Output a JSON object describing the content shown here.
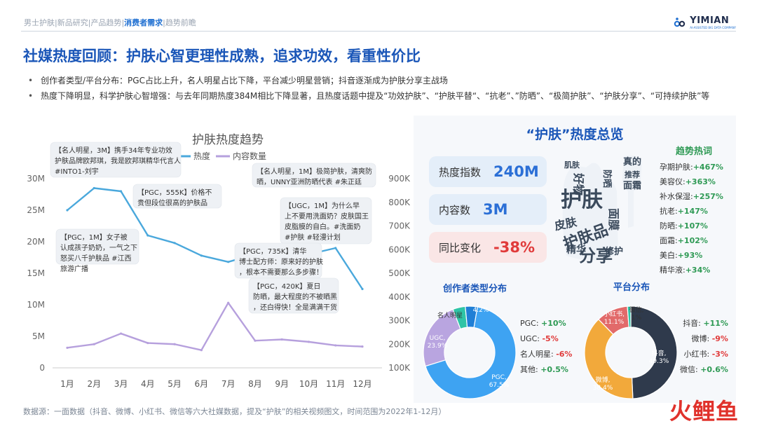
{
  "nav": {
    "items": [
      "男士护肤",
      "新品研究",
      "产品趋势",
      "消费者需求",
      "趋势前瞻"
    ],
    "active_index": 3
  },
  "brand": {
    "logo_text": "YIMIAN",
    "logo_sub": "AI-ASSISTED BIG DATA COMPANY",
    "bottom_mark": "火鲤鱼"
  },
  "title": "社媒热度回顾：护肤心智更理性成熟，追求功效，看重性价比",
  "bullets": [
    "创作者类型/平台分布：PGC占比上升，名人明星占比下降，平台减少明星营销；抖音逐渐成为护肤分享主战场",
    "热度下降明显，科学护肤心智增强：与去年同期热度384M相比下降显著，且热度话题中提及“功效护肤”、“护肤平替“、“抗老”、”防晒”、“极简护肤”、“护肤分享”、“可持续护肤”等"
  ],
  "source": "数据源：一面数据（抖音、微博、小红书、微信等六大社媒数据，提及“护肤”的相关视频图文，时间范围为2022年1-12月）",
  "chart_data": [
    {
      "type": "line",
      "title": "护肤热度趋势",
      "categories": [
        "1月",
        "2月",
        "3月",
        "4月",
        "5月",
        "6月",
        "7月",
        "8月",
        "9月",
        "10月",
        "11月",
        "12月"
      ],
      "series": [
        {
          "name": "热度",
          "axis": "left",
          "color": "#4aa8dc",
          "values": [
            25,
            28.5,
            28,
            21,
            19.8,
            17.8,
            16.8,
            18,
            18,
            18,
            19,
            12.5
          ]
        },
        {
          "name": "内容数量",
          "axis": "right",
          "color": "#b6a0dd",
          "values": [
            185,
            200,
            245,
            205,
            200,
            175,
            375,
            215,
            220,
            210,
            195,
            190
          ]
        }
      ],
      "y_left": {
        "ylim": [
          0,
          30
        ],
        "ticks": [
          "0",
          "5M",
          "10M",
          "15M",
          "20M",
          "25M",
          "30M"
        ]
      },
      "y_right": {
        "ylim": [
          100,
          900
        ],
        "ticks": [
          "100K",
          "200K",
          "300K",
          "400K",
          "500K",
          "600K",
          "700K",
          "800K",
          "900K"
        ]
      },
      "annotations": [
        {
          "text": "【名人明星，3M】携手34年专业功效护肤品牌欧邦琪，我是欧邦琪精华代言人#INTO1-刘宇"
        },
        {
          "text": "【PGC，555K】价格不贵但段位很高的护肤品"
        },
        {
          "text": "【PGC，1M】女子被认成孩子奶奶，一气之下怒买八千护肤品 #江西旅游广播"
        },
        {
          "text": "【名人明星，1M】极简护肤，清爽防晒，UNNY亚洲防晒代表 #朱正廷"
        },
        {
          "text": "【UGC，1M】为什么早上不要用洗面奶？皮肤国王皮脂膜的自白。#洗面奶 #护肤 #轻漫计划"
        },
        {
          "text": "【PGC，735K】清华博士配方师：原来好的护肤，根本不需要那么多步骤！"
        },
        {
          "text": "【PGC，420K】夏日防晒，最大程度的不被晒黑，还白得快！全是满满干货"
        }
      ]
    },
    {
      "type": "pie",
      "title": "创作者类型分布",
      "slices": [
        {
          "label": "PGC",
          "value": 67.5,
          "color": "#3ea3f2"
        },
        {
          "label": "UGC",
          "value": 23.9,
          "color": "#b9a5e0"
        },
        {
          "label": "名人明星",
          "value": 4.4,
          "color": "#2ec4a6"
        },
        {
          "label": "其他",
          "value": 4.2,
          "color": "#1f7fd6"
        }
      ],
      "slice_labels": [
        "PGC,\n67.5%",
        "UGC,\n23.9%",
        "名人明星",
        "4.2%"
      ],
      "legend": [
        {
          "label": "PGC:",
          "change": "+10%",
          "sign": "pos"
        },
        {
          "label": "UGC:",
          "change": "-5%",
          "sign": "neg"
        },
        {
          "label": "名人明星:",
          "change": "-6%",
          "sign": "neg"
        },
        {
          "label": "其他:",
          "change": "+0.5%",
          "sign": "pos"
        }
      ]
    },
    {
      "type": "pie",
      "title": "平台分布",
      "slices": [
        {
          "label": "抖音",
          "value": 49.3,
          "color": "#2f3a4c"
        },
        {
          "label": "微博",
          "value": 38.4,
          "color": "#f2a93b"
        },
        {
          "label": "小红书",
          "value": 11.1,
          "color": "#e26a6a"
        },
        {
          "label": "微信",
          "value": 1.2,
          "color": "#2ec4a6"
        }
      ],
      "slice_labels": [
        "抖音,\n49.3%",
        "微博,\n38.4%",
        "小红书,\n11.1%",
        "微信,\n1%"
      ],
      "legend": [
        {
          "label": "抖音:",
          "change": "+11%",
          "sign": "pos"
        },
        {
          "label": "微博:",
          "change": "-9%",
          "sign": "neg"
        },
        {
          "label": "小红书:",
          "change": "-3%",
          "sign": "neg"
        },
        {
          "label": "微信:",
          "change": "+0.6%",
          "sign": "pos"
        }
      ]
    }
  ],
  "overview": {
    "title": "“护肤”热度总览",
    "stats": [
      {
        "label": "热度指数",
        "value": "240M",
        "tone": "pos"
      },
      {
        "label": "内容数",
        "value": "3M",
        "tone": "pos"
      },
      {
        "label": "同比变化",
        "value": "-38%",
        "tone": "neg"
      }
    ],
    "wordcloud": [
      "护肤",
      "好物",
      "护肤品",
      "分享",
      "皮肤",
      "面膜",
      "精华",
      "修护",
      "防晒",
      "肌肤",
      "真的",
      "推荐",
      "面霜"
    ],
    "trend_title": "趋势热词",
    "trend_words": [
      {
        "word": "孕期护肤:",
        "value": "+467%"
      },
      {
        "word": "美容仪:",
        "value": "+363%"
      },
      {
        "word": "补水保湿:",
        "value": "+257%"
      },
      {
        "word": "抗老:",
        "value": "+147%"
      },
      {
        "word": "防晒:",
        "value": "+107%"
      },
      {
        "word": "面霜:",
        "value": "+102%"
      },
      {
        "word": "美白:",
        "value": "+93%"
      },
      {
        "word": "精华液:",
        "value": "+34%"
      }
    ]
  }
}
